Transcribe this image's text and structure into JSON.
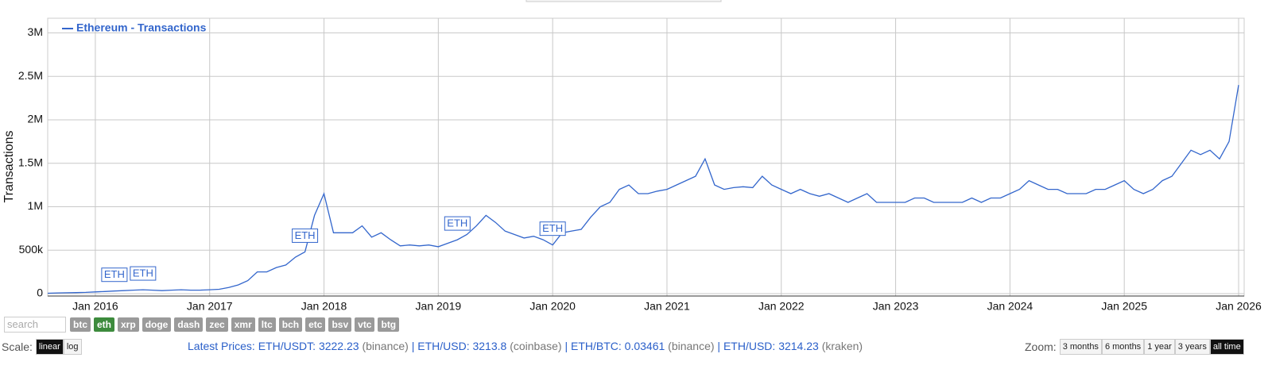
{
  "chart_data": {
    "type": "line",
    "ylabel": "Transactions",
    "log_scale": false,
    "grid": true,
    "legend": "top-left",
    "xlim": [
      "2015-08",
      "2026-01"
    ],
    "xticks": [
      {
        "value": "2016-01",
        "label": "Jan 2016"
      },
      {
        "value": "2017-01",
        "label": "Jan 2017"
      },
      {
        "value": "2018-01",
        "label": "Jan 2018"
      },
      {
        "value": "2019-01",
        "label": "Jan 2019"
      },
      {
        "value": "2020-01",
        "label": "Jan 2020"
      },
      {
        "value": "2021-01",
        "label": "Jan 2021"
      },
      {
        "value": "2022-01",
        "label": "Jan 2022"
      },
      {
        "value": "2023-01",
        "label": "Jan 2023"
      },
      {
        "value": "2024-01",
        "label": "Jan 2024"
      },
      {
        "value": "2025-01",
        "label": "Jan 2025"
      },
      {
        "value": "2026-01",
        "label": "Jan 2026"
      }
    ],
    "ylim": [
      0,
      3150000
    ],
    "yticks": [
      0,
      {
        "value": 500000,
        "label": "500k"
      },
      {
        "value": 1000000,
        "label": "1M"
      },
      {
        "value": 1500000,
        "label": "1.5M"
      },
      {
        "value": 2000000,
        "label": "2M"
      },
      {
        "value": 2500000,
        "label": "2.5M"
      },
      {
        "value": 3000000,
        "label": "3M"
      }
    ],
    "x": [
      "2015-08",
      "2015-09",
      "2015-10",
      "2015-11",
      "2015-12",
      "2016-01",
      "2016-02",
      "2016-03",
      "2016-04",
      "2016-05",
      "2016-06",
      "2016-07",
      "2016-08",
      "2016-09",
      "2016-10",
      "2016-11",
      "2016-12",
      "2017-01",
      "2017-02",
      "2017-03",
      "2017-04",
      "2017-05",
      "2017-06",
      "2017-07",
      "2017-08",
      "2017-09",
      "2017-10",
      "2017-11",
      "2017-12",
      "2018-01",
      "2018-02",
      "2018-03",
      "2018-04",
      "2018-05",
      "2018-06",
      "2018-07",
      "2018-08",
      "2018-09",
      "2018-10",
      "2018-11",
      "2018-12",
      "2019-01",
      "2019-02",
      "2019-03",
      "2019-04",
      "2019-05",
      "2019-06",
      "2019-07",
      "2019-08",
      "2019-09",
      "2019-10",
      "2019-11",
      "2019-12",
      "2020-01",
      "2020-02",
      "2020-03",
      "2020-04",
      "2020-05",
      "2020-06",
      "2020-07",
      "2020-08",
      "2020-09",
      "2020-10",
      "2020-11",
      "2020-12",
      "2021-01",
      "2021-02",
      "2021-03",
      "2021-04",
      "2021-05",
      "2021-06",
      "2021-07",
      "2021-08",
      "2021-09",
      "2021-10",
      "2021-11",
      "2021-12",
      "2022-01",
      "2022-02",
      "2022-03",
      "2022-04",
      "2022-05",
      "2022-06",
      "2022-07",
      "2022-08",
      "2022-09",
      "2022-10",
      "2022-11",
      "2022-12",
      "2023-01",
      "2023-02",
      "2023-03",
      "2023-04",
      "2023-05",
      "2023-06",
      "2023-07",
      "2023-08",
      "2023-09",
      "2023-10",
      "2023-11",
      "2023-12",
      "2024-01",
      "2024-02",
      "2024-03",
      "2024-04",
      "2024-05",
      "2024-06",
      "2024-07",
      "2024-08",
      "2024-09",
      "2024-10",
      "2024-11",
      "2024-12",
      "2025-01",
      "2025-02",
      "2025-03",
      "2025-04",
      "2025-05",
      "2025-06",
      "2025-07",
      "2025-08",
      "2025-09",
      "2025-10",
      "2025-11",
      "2025-12",
      "2026-01"
    ],
    "series": [
      {
        "name": "Ethereum - Transactions",
        "color": "#3366cc",
        "values": [
          5000,
          8000,
          10000,
          12000,
          15000,
          20000,
          25000,
          30000,
          35000,
          40000,
          45000,
          40000,
          35000,
          40000,
          45000,
          40000,
          40000,
          45000,
          50000,
          70000,
          100000,
          150000,
          250000,
          250000,
          300000,
          330000,
          420000,
          480000,
          900000,
          1150000,
          700000,
          700000,
          700000,
          780000,
          650000,
          700000,
          620000,
          550000,
          560000,
          550000,
          560000,
          540000,
          580000,
          620000,
          680000,
          780000,
          900000,
          820000,
          720000,
          680000,
          640000,
          660000,
          620000,
          560000,
          700000,
          720000,
          740000,
          880000,
          1000000,
          1050000,
          1200000,
          1250000,
          1150000,
          1150000,
          1180000,
          1200000,
          1250000,
          1300000,
          1350000,
          1550000,
          1250000,
          1200000,
          1220000,
          1230000,
          1220000,
          1350000,
          1250000,
          1200000,
          1150000,
          1200000,
          1150000,
          1120000,
          1150000,
          1100000,
          1050000,
          1100000,
          1150000,
          1050000,
          1050000,
          1050000,
          1050000,
          1100000,
          1100000,
          1050000,
          1050000,
          1050000,
          1050000,
          1100000,
          1050000,
          1100000,
          1100000,
          1150000,
          1200000,
          1300000,
          1250000,
          1200000,
          1200000,
          1150000,
          1150000,
          1150000,
          1200000,
          1200000,
          1250000,
          1300000,
          1200000,
          1150000,
          1200000,
          1300000,
          1350000,
          1500000,
          1650000,
          1600000,
          1650000,
          1550000,
          1750000,
          2400000
        ]
      }
    ],
    "annotations": [
      {
        "x": "2016-03",
        "text": "ETH"
      },
      {
        "x": "2016-06",
        "text": "ETH"
      },
      {
        "x": "2017-11",
        "text": "ETH"
      },
      {
        "x": "2019-03",
        "text": "ETH"
      },
      {
        "x": "2020-01",
        "text": "ETH"
      }
    ]
  },
  "controls": {
    "search_placeholder": "search",
    "coins": [
      "btc",
      "eth",
      "xrp",
      "doge",
      "dash",
      "zec",
      "xmr",
      "ltc",
      "bch",
      "etc",
      "bsv",
      "vtc",
      "btg"
    ],
    "active_coin": "eth",
    "scale_label": "Scale:",
    "scales": [
      "linear",
      "log"
    ],
    "active_scale": "linear",
    "zoom_label": "Zoom:",
    "zooms": [
      "3 months",
      "6 months",
      "1 year",
      "3 years",
      "all time"
    ],
    "active_zoom": "all time"
  },
  "prices": {
    "label": "Latest Prices:",
    "items": [
      {
        "pair": "ETH/USDT:",
        "price": 3222.23,
        "exchange": "(binance)"
      },
      {
        "pair": "ETH/USD:",
        "price": 3213.8,
        "exchange": "(coinbase)"
      },
      {
        "pair": "ETH/BTC:",
        "price": 0.03461,
        "exchange": "(binance)"
      },
      {
        "pair": "ETH/USD:",
        "price": 3214.23,
        "exchange": "(kraken)"
      }
    ]
  }
}
